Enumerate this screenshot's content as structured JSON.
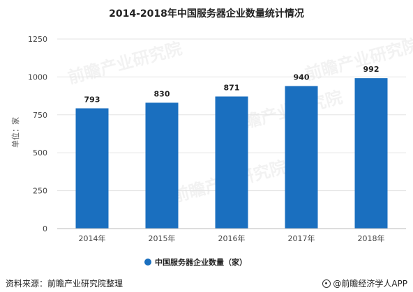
{
  "chart_data": {
    "type": "bar",
    "title": "2014-2018年中国服务器企业数量统计情况",
    "ylabel": "单位：家",
    "xlabel": "",
    "categories": [
      "2014年",
      "2015年",
      "2016年",
      "2017年",
      "2018年"
    ],
    "series": [
      {
        "name": "中国服务器企业数量（家）",
        "values": [
          793,
          830,
          871,
          940,
          992
        ]
      }
    ],
    "ylim": [
      0,
      1250
    ],
    "yticks": [
      0,
      250,
      500,
      750,
      1000,
      1250
    ],
    "grid": true,
    "legend_position": "bottom",
    "bar_color": "#1a6fbf"
  },
  "watermark": "前瞻产业研究院",
  "footer": {
    "source": "资料来源：前瞻产业研究院整理",
    "brand": "@前瞻经济学人APP"
  }
}
